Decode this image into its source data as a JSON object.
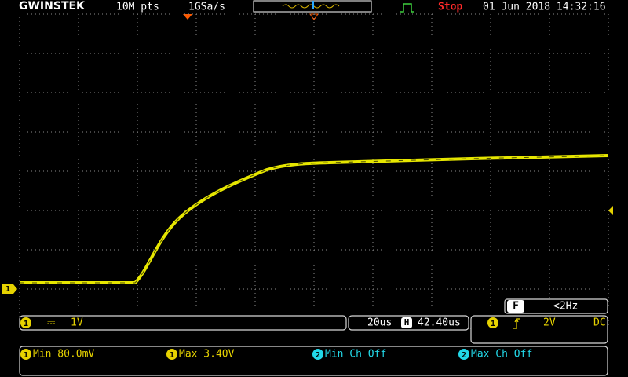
{
  "header": {
    "logo": "GWINSTEK",
    "memory": "10M pts",
    "sample_rate": "1GSa/s",
    "status": "Stop",
    "datetime": "01 Jun 2018 14:32:16"
  },
  "screen": {
    "channel_marker": "1"
  },
  "trigger_freq": {
    "icon": "F",
    "value": "<2Hz"
  },
  "channel_bar": {
    "channel": "1",
    "coupling": "⎓",
    "scale": "1V"
  },
  "timebase": {
    "scale": "20us",
    "icon": "H",
    "position": "42.40us"
  },
  "trigger": {
    "channel": "1",
    "level": "2V",
    "coupling": "DC"
  },
  "measurements": [
    {
      "channel": "1",
      "text": "Min 80.0mV"
    },
    {
      "channel": "1",
      "text": "Max 3.40V"
    },
    {
      "channel": "2",
      "text": "Min Ch Off"
    },
    {
      "channel": "2",
      "text": "Max Ch Off"
    }
  ]
}
